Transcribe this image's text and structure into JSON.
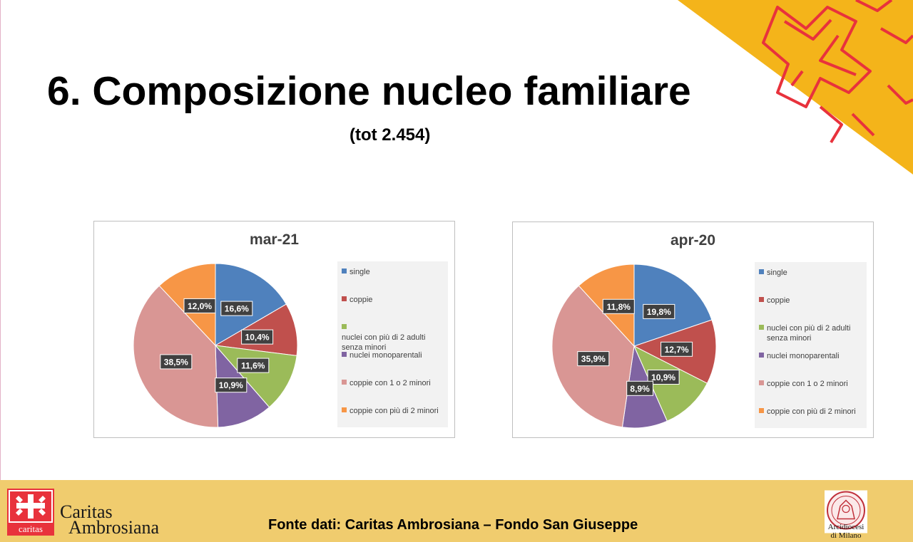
{
  "title": "6. Composizione nucleo familiare",
  "subtitle": "(tot 2.454)",
  "footer": {
    "source": "Fonte dati: Caritas Ambrosiana – Fondo San Giuseppe",
    "caritas_logo_text": "caritas",
    "caritas_line1": "Caritas",
    "caritas_line2": "Ambrosiana",
    "diocese_line1": "Arcidiocesi",
    "diocese_line2": "di Milano"
  },
  "colors": {
    "single": "#4f81bd",
    "coppie": "#c0504d",
    "nuclei_adulti": "#9bbb59",
    "monoparentali": "#8064a2",
    "coppie_1_2_minori": "#d99694",
    "coppie_piu_2_minori": "#f79646",
    "footer_bg": "#f0cc6e",
    "accent_red": "#e8323c",
    "accent_yellow": "#f4b41a"
  },
  "chart_data": [
    {
      "type": "pie",
      "title": "mar-21",
      "categories": [
        "single",
        "coppie",
        "nuclei con più di 2 adulti senza minori",
        "nuclei monoparentali",
        "coppie con 1 o 2 minori",
        "coppie con più di 2 minori"
      ],
      "values": [
        16.6,
        10.4,
        11.6,
        10.9,
        38.5,
        12.0
      ],
      "labels": [
        "16,6%",
        "10,4%",
        "11,6%",
        "10,9%",
        "38,5%",
        "12,0%"
      ],
      "legend_position": "right"
    },
    {
      "type": "pie",
      "title": "apr-20",
      "categories": [
        "single",
        "coppie",
        "nuclei con più di 2 adulti senza minori",
        "nuclei monoparentali",
        "coppie con 1 o 2 minori",
        "coppie con più di 2 minori"
      ],
      "values": [
        19.8,
        12.7,
        10.9,
        8.9,
        35.9,
        11.8
      ],
      "labels": [
        "19,8%",
        "12,7%",
        "10,9%",
        "8,9%",
        "35,9%",
        "11,8%"
      ],
      "legend_position": "right"
    }
  ]
}
